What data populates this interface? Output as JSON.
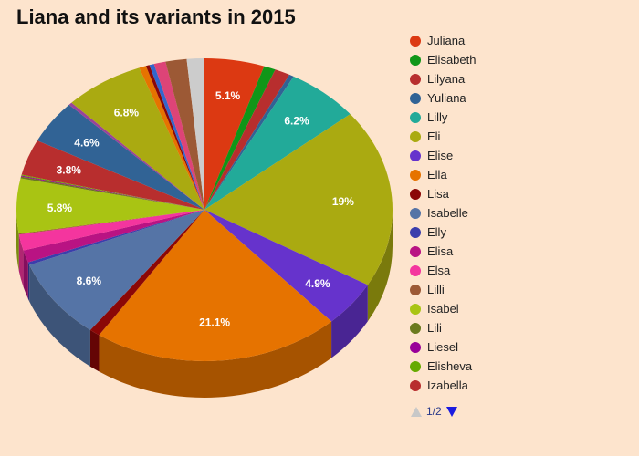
{
  "chart_data": {
    "type": "pie",
    "title": "Liana and its variants in 2015",
    "slices": [
      {
        "name": "Juliana",
        "value": 5.1,
        "color": "#dc3912"
      },
      {
        "name": "Elisabeth",
        "value": 1.0,
        "color": "#109618"
      },
      {
        "name": "Lilyana",
        "value": 1.3,
        "color": "#b82e2e"
      },
      {
        "name": "Yuliana",
        "value": 0.4,
        "color": "#316395"
      },
      {
        "name": "Lilly",
        "value": 6.2,
        "color": "#22aa99"
      },
      {
        "name": "Eli",
        "value": 19,
        "color": "#aaaa11"
      },
      {
        "name": "Elise",
        "value": 4.9,
        "color": "#6633cc"
      },
      {
        "name": "Ella",
        "value": 21.1,
        "color": "#e67300"
      },
      {
        "name": "Lisa",
        "value": 0.9,
        "color": "#8b0707"
      },
      {
        "name": "Isabelle",
        "value": 8.6,
        "color": "#5574a6"
      },
      {
        "name": "Elly",
        "value": 0.3,
        "color": "#3b3eac"
      },
      {
        "name": "Elisa",
        "value": 1.3,
        "color": "#b91383"
      },
      {
        "name": "Elsa",
        "value": 1.7,
        "color": "#f4359e"
      },
      {
        "name": "Lilli",
        "value": 0.1,
        "color": "#9c5935"
      },
      {
        "name": "Isabel",
        "value": 5.8,
        "color": "#a9c413"
      },
      {
        "name": "Lili",
        "value": 0.2,
        "color": "#6b7a1e"
      },
      {
        "name": "Liesel",
        "value": 0.1,
        "color": "#990099"
      },
      {
        "name": "Elisheva",
        "value": 0.1,
        "color": "#66aa00"
      },
      {
        "name": "Izabella",
        "value": 3.8,
        "color": "#b82e2e"
      },
      {
        "name": "",
        "value": 4.6,
        "color": "#316395"
      },
      {
        "name": "",
        "value": 0.3,
        "color": "#994499"
      },
      {
        "name": "",
        "value": 6.8,
        "color": "#aaaa11"
      },
      {
        "name": "",
        "value": 0.6,
        "color": "#e67300"
      },
      {
        "name": "",
        "value": 0.3,
        "color": "#8b0707"
      },
      {
        "name": "",
        "value": 0.4,
        "color": "#3366cc"
      },
      {
        "name": "",
        "value": 1.0,
        "color": "#dd4477"
      },
      {
        "name": "",
        "value": 1.8,
        "color": "#9c5935"
      },
      {
        "name": "",
        "value": 1.5,
        "color": "#cccccc"
      }
    ],
    "data_labels": [
      "5.1%",
      "6.2%",
      "19%",
      "4.9%",
      "21.1%",
      "8.6%",
      "5.8%",
      "3.8%",
      "4.6%",
      "6.8%"
    ]
  },
  "legend": {
    "items": [
      {
        "label": "Juliana",
        "color": "#dc3912"
      },
      {
        "label": "Elisabeth",
        "color": "#109618"
      },
      {
        "label": "Lilyana",
        "color": "#b82e2e"
      },
      {
        "label": "Yuliana",
        "color": "#316395"
      },
      {
        "label": "Lilly",
        "color": "#22aa99"
      },
      {
        "label": "Eli",
        "color": "#aaaa11"
      },
      {
        "label": "Elise",
        "color": "#6633cc"
      },
      {
        "label": "Ella",
        "color": "#e67300"
      },
      {
        "label": "Lisa",
        "color": "#8b0707"
      },
      {
        "label": "Isabelle",
        "color": "#5574a6"
      },
      {
        "label": "Elly",
        "color": "#3b3eac"
      },
      {
        "label": "Elisa",
        "color": "#b91383"
      },
      {
        "label": "Elsa",
        "color": "#f4359e"
      },
      {
        "label": "Lilli",
        "color": "#9c5935"
      },
      {
        "label": "Isabel",
        "color": "#a9c413"
      },
      {
        "label": "Lili",
        "color": "#6b7a1e"
      },
      {
        "label": "Liesel",
        "color": "#990099"
      },
      {
        "label": "Elisheva",
        "color": "#66aa00"
      },
      {
        "label": "Izabella",
        "color": "#b82e2e"
      }
    ],
    "pager_text": "1/2",
    "up_icon": "triangle-up-icon",
    "down_icon": "triangle-down-icon"
  },
  "background_color": "#fde4cd"
}
